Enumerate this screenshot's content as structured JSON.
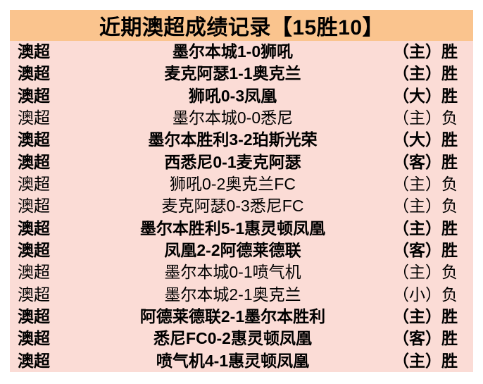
{
  "title": "近期澳超成绩记录【15胜10】",
  "colors": {
    "header_bg": "#fac48e",
    "row_bg": "#fbdcd6",
    "text": "#000000",
    "page_bg": "#ffffff"
  },
  "table": {
    "rows": [
      {
        "league": "澳超",
        "match": "墨尔本城1-0狮吼",
        "venue": "（主）",
        "result": "胜",
        "outcome": "win"
      },
      {
        "league": "澳超",
        "match": "麦克阿瑟1-1奥克兰",
        "venue": "（主）",
        "result": "胜",
        "outcome": "win"
      },
      {
        "league": "澳超",
        "match": "狮吼0-3凤凰",
        "venue": "（大）",
        "result": "胜",
        "outcome": "win"
      },
      {
        "league": "澳超",
        "match": "墨尔本城0-0悉尼",
        "venue": "（主）",
        "result": "负",
        "outcome": "loss"
      },
      {
        "league": "澳超",
        "match": "墨尔本胜利3-2珀斯光荣",
        "venue": "（大）",
        "result": "胜",
        "outcome": "win"
      },
      {
        "league": "澳超",
        "match": "西悉尼0-1麦克阿瑟",
        "venue": "（客）",
        "result": "胜",
        "outcome": "win"
      },
      {
        "league": "澳超",
        "match": "狮吼0-2奥克兰FC",
        "venue": "（主）",
        "result": "负",
        "outcome": "loss"
      },
      {
        "league": "澳超",
        "match": "麦克阿瑟0-3悉尼FC",
        "venue": "（主）",
        "result": "负",
        "outcome": "loss"
      },
      {
        "league": "澳超",
        "match": "墨尔本胜利5-1惠灵顿凤凰",
        "venue": "（主）",
        "result": "胜",
        "outcome": "win"
      },
      {
        "league": "澳超",
        "match": "凤凰2-2阿德莱德联",
        "venue": "（客）",
        "result": "胜",
        "outcome": "win"
      },
      {
        "league": "澳超",
        "match": "墨尔本城0-1喷气机",
        "venue": "（主）",
        "result": "负",
        "outcome": "loss"
      },
      {
        "league": "澳超",
        "match": "墨尔本城2-1奥克兰",
        "venue": "（小）",
        "result": "负",
        "outcome": "loss"
      },
      {
        "league": "澳超",
        "match": "阿德莱德联2-1墨尔本胜利",
        "venue": "（主）",
        "result": "胜",
        "outcome": "win"
      },
      {
        "league": "澳超",
        "match": "悉尼FC0-2惠灵顿凤凰",
        "venue": "（客）",
        "result": "胜",
        "outcome": "win"
      },
      {
        "league": "澳超",
        "match": "喷气机4-1惠灵顿凤凰",
        "venue": "（主）",
        "result": "胜",
        "outcome": "win"
      }
    ]
  }
}
